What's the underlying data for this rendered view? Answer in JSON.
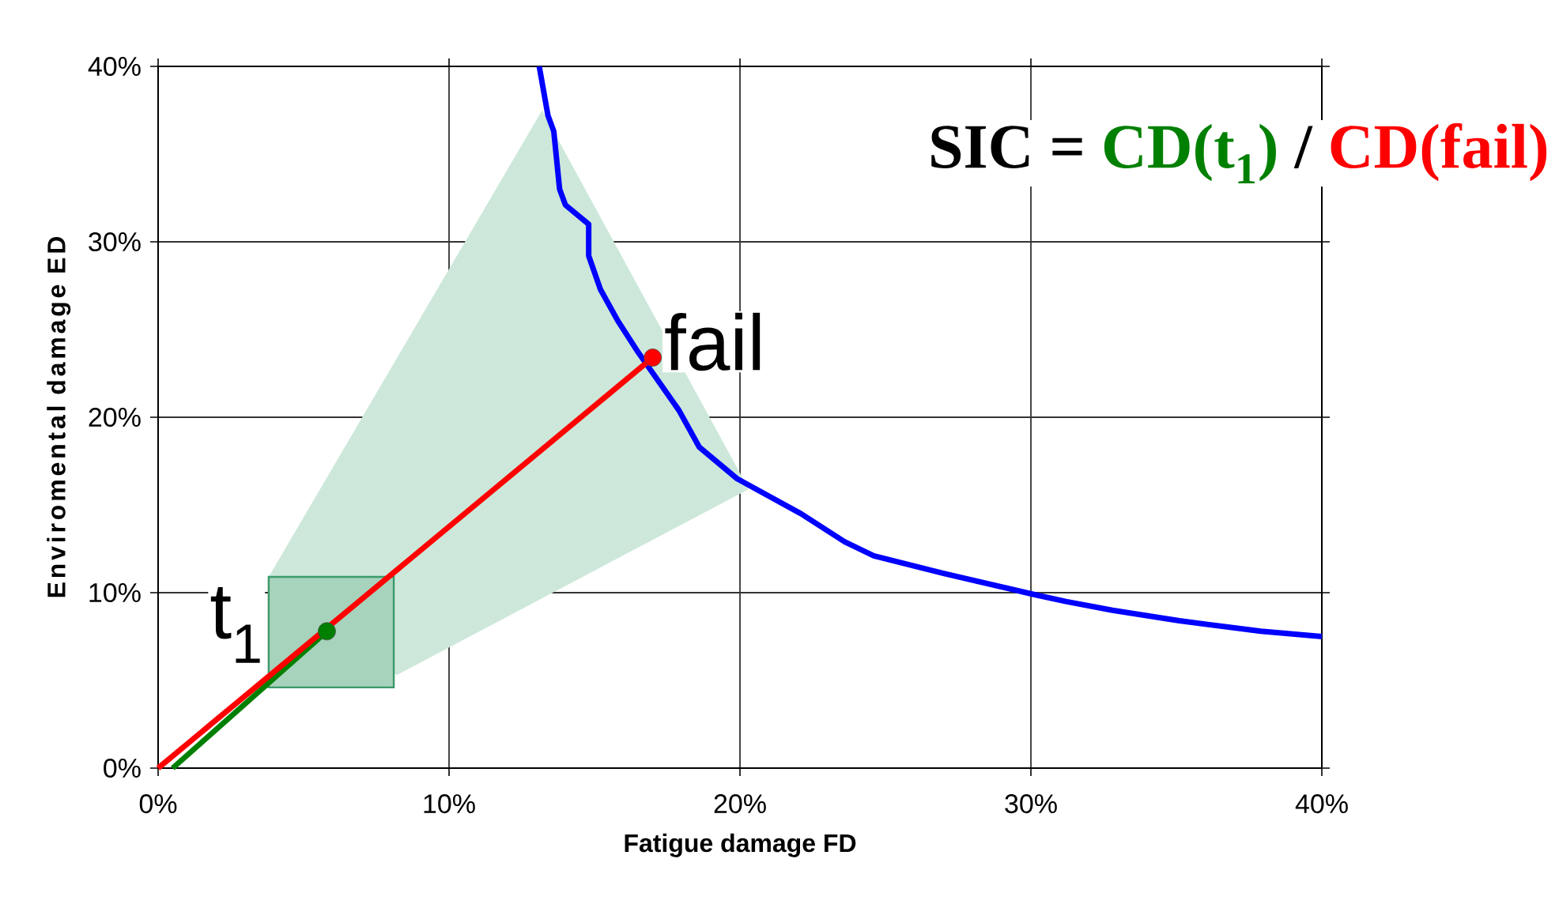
{
  "chart_data": {
    "type": "line",
    "xlabel": "Fatigue damage FD",
    "ylabel": "Enviromental damage ED",
    "annotations": [
      "SIC =",
      "CD(t$_{1}$)",
      "/",
      "CD(fail)"
    ],
    "xlim": [
      0,
      40
    ],
    "ylim": [
      0,
      40
    ],
    "xticks": [
      {
        "value": 0,
        "label": "0%"
      },
      {
        "value": 10,
        "label": "10%"
      },
      {
        "value": 20,
        "label": "20%"
      },
      {
        "value": 30,
        "label": "30%"
      },
      {
        "value": 40,
        "label": "40%"
      }
    ],
    "yticks": [
      {
        "value": 0,
        "label": "0%"
      },
      {
        "value": 10,
        "label": "10%"
      },
      {
        "value": 20,
        "label": "20%"
      },
      {
        "value": 30,
        "label": "30%"
      },
      {
        "value": 40,
        "label": "40%"
      }
    ],
    "grid": true,
    "marker": "none",
    "series": [
      {
        "type": "area",
        "color": "#cde8da",
        "x": [
          3.8,
          13.2,
          20.3,
          8.2
        ],
        "values": [
          10.9,
          37.5,
          15.9,
          5.3
        ]
      },
      {
        "type": "area",
        "color": "#3c9a6a",
        "x": [
          3.8,
          3.8,
          8.1,
          8.1
        ],
        "values": [
          4.6,
          10.9,
          10.9,
          4.6
        ]
      },
      {
        "color": "#0000ff",
        "x": [
          13.1,
          13.4,
          13.6,
          13.8,
          14.0,
          14.8,
          14.8,
          15.2,
          15.8,
          16.5,
          17.9,
          18.6,
          19.9,
          22.1,
          23.6,
          24.6,
          27.0,
          30.1,
          31.2,
          32.8,
          35.1,
          37.9,
          40.0
        ],
        "values": [
          40.0,
          37.2,
          36.3,
          33.0,
          32.1,
          31.0,
          29.2,
          27.3,
          25.5,
          23.7,
          20.4,
          18.3,
          16.5,
          14.5,
          12.9,
          12.1,
          11.1,
          9.9,
          9.5,
          9.0,
          8.4,
          7.8,
          7.5
        ]
      },
      {
        "color": "#008000",
        "x": [
          0.5,
          5.8
        ],
        "values": [
          0,
          7.8
        ]
      },
      {
        "color": "#ff0000",
        "x": [
          0,
          17.0
        ],
        "values": [
          0,
          23.4
        ]
      },
      {
        "type": "scatter",
        "marker": "circle",
        "name": "fail",
        "color": "#ff0000",
        "x": [
          17.0
        ],
        "values": [
          23.4
        ]
      },
      {
        "type": "scatter",
        "marker": "circle",
        "name": "t$_{1}$",
        "color": "#008000",
        "x": [
          5.8
        ],
        "values": [
          7.8
        ]
      }
    ]
  }
}
